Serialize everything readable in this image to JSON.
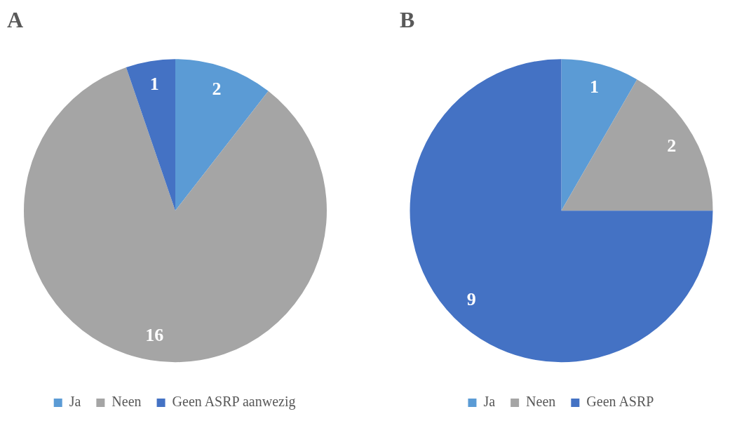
{
  "chart_data": [
    {
      "type": "pie",
      "title": "A",
      "categories": [
        "Ja",
        "Neen",
        "Geen ASRP aanwezig"
      ],
      "values": [
        2,
        16,
        1
      ],
      "colors": [
        "#5b9bd5",
        "#a5a5a5",
        "#4472c4"
      ],
      "data_labels": true,
      "legend": "bottom"
    },
    {
      "type": "pie",
      "title": "B",
      "categories": [
        "Ja",
        "Neen",
        "Geen ASRP"
      ],
      "values": [
        1,
        2,
        9
      ],
      "colors": [
        "#5b9bd5",
        "#a5a5a5",
        "#4472c4"
      ],
      "data_labels": true,
      "legend": "bottom"
    }
  ]
}
